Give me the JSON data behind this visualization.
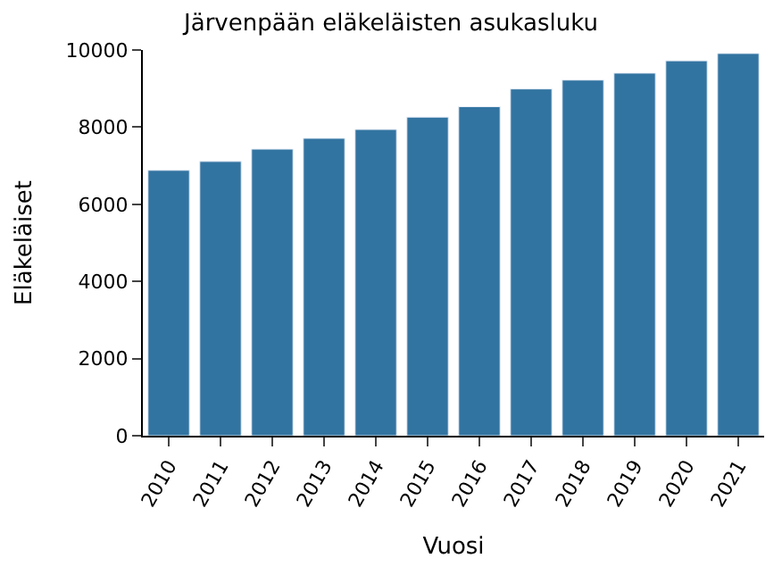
{
  "chart_data": {
    "type": "bar",
    "title": "Järvenpään eläkeläisten asukasluku",
    "xlabel": "Vuosi",
    "ylabel": "Eläkeläiset",
    "categories": [
      "2010",
      "2011",
      "2012",
      "2013",
      "2014",
      "2015",
      "2016",
      "2017",
      "2018",
      "2019",
      "2020",
      "2021"
    ],
    "values": [
      6880,
      7110,
      7430,
      7710,
      7940,
      8260,
      8530,
      8990,
      9220,
      9400,
      9720,
      9910
    ],
    "color": "#3274a1",
    "ylim": [
      0,
      10000
    ],
    "yticks": [
      0,
      2000,
      4000,
      6000,
      8000,
      10000
    ]
  }
}
